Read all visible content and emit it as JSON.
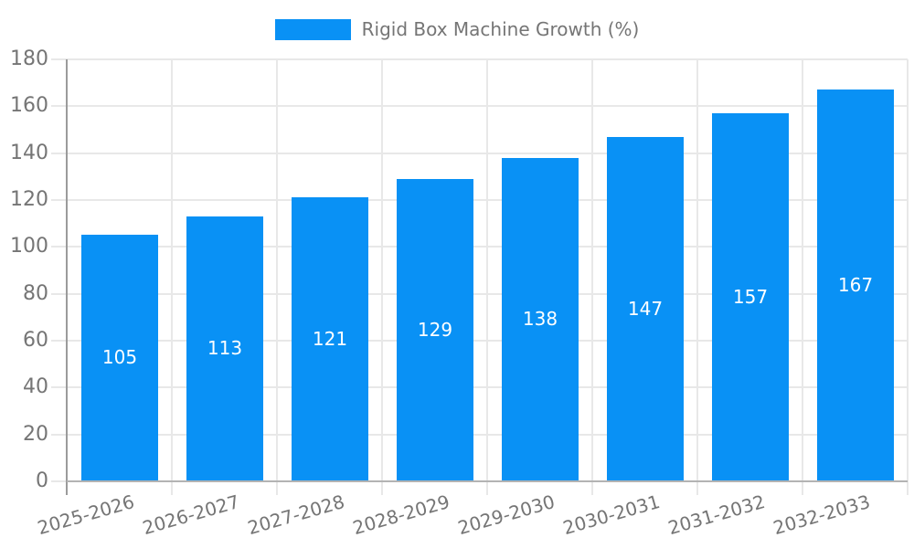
{
  "legend": {
    "label": "Rigid Box Machine Growth (%)"
  },
  "colors": {
    "bar": "#0991f5",
    "grid": "#e8e8e8",
    "axis_line_y": "#9b9b9b",
    "axis_line_x": "#b3b3b3",
    "tick_text": "#757575",
    "bar_label_text": "#ffffff"
  },
  "chart_data": {
    "type": "bar",
    "title": "Rigid Box Machine Growth (%)",
    "categories": [
      "2025-2026",
      "2026-2027",
      "2027-2028",
      "2028-2029",
      "2029-2030",
      "2030-2031",
      "2031-2032",
      "2032-2033"
    ],
    "values": [
      105,
      113,
      121,
      129,
      138,
      147,
      157,
      167
    ],
    "xlabel": "",
    "ylabel": "",
    "ylim": [
      0,
      180
    ],
    "ytick_step": 20,
    "ytick_labels": [
      "0",
      "20",
      "40",
      "60",
      "80",
      "100",
      "120",
      "140",
      "160",
      "180"
    ],
    "grid": true,
    "legend_position": "top-center",
    "bar_label_position": "inside-center",
    "xtick_label_rotation_deg": -16
  }
}
